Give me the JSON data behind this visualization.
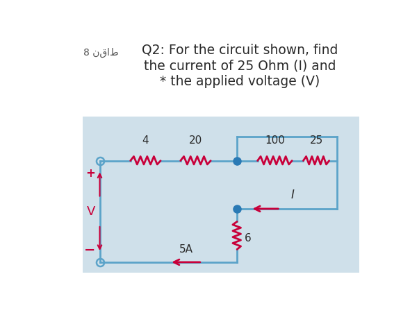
{
  "bg_color": "#ffffff",
  "circuit_bg": "#cfe0ea",
  "wire_color": "#5ba3c9",
  "resistor_color": "#c8003a",
  "arrow_color": "#c8003a",
  "title_line1": "Q2: For the circuit shown, find",
  "title_line2": "the current of 25 Ohm (I) and",
  "title_line3": "* the applied voltage (V)",
  "points_label": "8 نقاط",
  "resistors_top": [
    "4",
    "20",
    "100",
    "25"
  ],
  "resistor_side_label": "6",
  "current_label": "I",
  "source_label_plus": "+",
  "source_label_minus": "−",
  "voltage_label": "V",
  "current_source_label": "5A",
  "node_color": "#2a7ab5",
  "text_color": "#2a2a2a",
  "star_color": "#cc0000",
  "title_fontsize": 13.5,
  "label_fontsize": 11
}
